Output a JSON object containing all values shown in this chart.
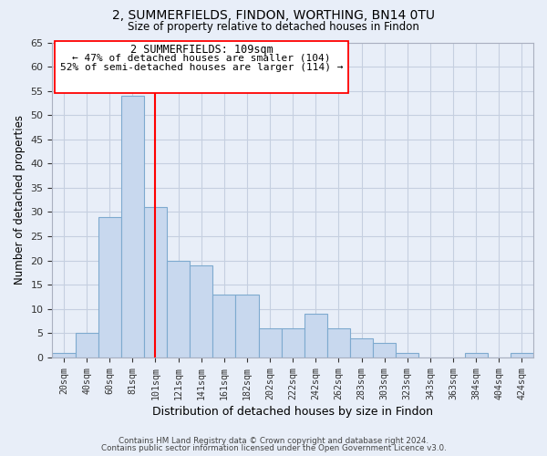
{
  "title1": "2, SUMMERFIELDS, FINDON, WORTHING, BN14 0TU",
  "title2": "Size of property relative to detached houses in Findon",
  "xlabel": "Distribution of detached houses by size in Findon",
  "ylabel": "Number of detached properties",
  "bar_labels": [
    "20sqm",
    "40sqm",
    "60sqm",
    "81sqm",
    "101sqm",
    "121sqm",
    "141sqm",
    "161sqm",
    "182sqm",
    "202sqm",
    "222sqm",
    "242sqm",
    "262sqm",
    "283sqm",
    "303sqm",
    "323sqm",
    "343sqm",
    "363sqm",
    "384sqm",
    "404sqm",
    "424sqm"
  ],
  "bar_values": [
    1,
    5,
    29,
    54,
    31,
    20,
    19,
    13,
    13,
    6,
    6,
    9,
    6,
    4,
    3,
    1,
    0,
    0,
    1,
    0,
    1
  ],
  "bar_color": "#c8d8ee",
  "bar_edge_color": "#7eaacf",
  "ylim": [
    0,
    65
  ],
  "yticks": [
    0,
    5,
    10,
    15,
    20,
    25,
    30,
    35,
    40,
    45,
    50,
    55,
    60,
    65
  ],
  "property_label": "2 SUMMERFIELDS: 109sqm",
  "pct_smaller": 47,
  "n_smaller": 104,
  "pct_larger_semi": 52,
  "n_larger_semi": 114,
  "vline_x": 4.5,
  "footer1": "Contains HM Land Registry data © Crown copyright and database right 2024.",
  "footer2": "Contains public sector information licensed under the Open Government Licence v3.0.",
  "fig_bg_color": "#e8eef8",
  "plot_bg_color": "#e8eef8",
  "grid_color": "#c5cfe0"
}
